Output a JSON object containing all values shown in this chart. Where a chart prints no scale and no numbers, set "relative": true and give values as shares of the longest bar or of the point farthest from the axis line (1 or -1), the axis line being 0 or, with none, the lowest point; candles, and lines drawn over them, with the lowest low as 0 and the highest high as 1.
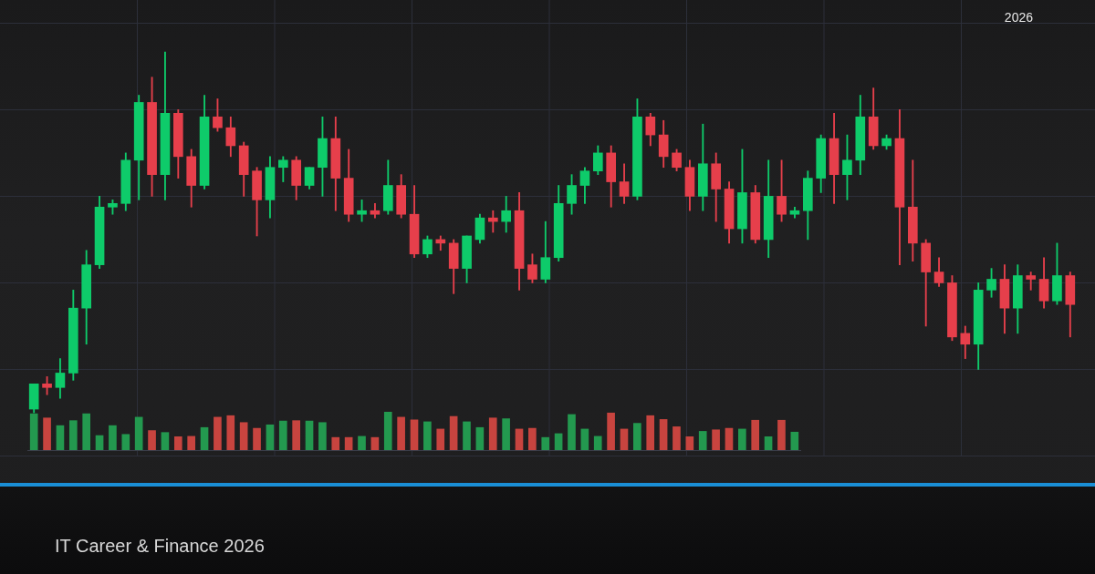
{
  "chart_data": [
    {
      "type": "candlestick",
      "title": "IT Career & Finance 2026",
      "annotations": [
        "2026"
      ],
      "relative": true,
      "grid": true,
      "categories": [
        null,
        null,
        null,
        null,
        null,
        null,
        null,
        null,
        null,
        null,
        null,
        null,
        null,
        null,
        null,
        null,
        null,
        null,
        null,
        null,
        null,
        null,
        null,
        null,
        null,
        null,
        null,
        null,
        null,
        null,
        null,
        null,
        null,
        null,
        null,
        null,
        null,
        null,
        null,
        null,
        null,
        null,
        null,
        null,
        null,
        null,
        null,
        null,
        null,
        null,
        null,
        null,
        null,
        null,
        null,
        null,
        null,
        null,
        null,
        null,
        null,
        null,
        null,
        null,
        null,
        null,
        null,
        null,
        null,
        null,
        null,
        null,
        null,
        null,
        null,
        null,
        null,
        null,
        null,
        null
      ],
      "ohlc": [
        [
          0.01,
          0.08,
          0,
          0.08
        ],
        [
          0.08,
          0.1,
          0.05,
          0.07
        ],
        [
          0.07,
          0.15,
          0.04,
          0.11
        ],
        [
          0.11,
          0.34,
          0.09,
          0.29
        ],
        [
          0.29,
          0.45,
          0.19,
          0.41
        ],
        [
          0.41,
          0.6,
          0.4,
          0.57
        ],
        [
          0.57,
          0.59,
          0.55,
          0.58
        ],
        [
          0.58,
          0.72,
          0.56,
          0.7
        ],
        [
          0.7,
          0.88,
          0.59,
          0.86
        ],
        [
          0.86,
          0.93,
          0.6,
          0.66
        ],
        [
          0.66,
          1,
          0.59,
          0.83
        ],
        [
          0.83,
          0.84,
          0.65,
          0.71
        ],
        [
          0.71,
          0.73,
          0.57,
          0.63
        ],
        [
          0.63,
          0.88,
          0.62,
          0.82
        ],
        [
          0.82,
          0.87,
          0.78,
          0.79
        ],
        [
          0.79,
          0.82,
          0.71,
          0.74
        ],
        [
          0.74,
          0.75,
          0.6,
          0.66
        ],
        [
          0.67,
          0.68,
          0.49,
          0.59
        ],
        [
          0.59,
          0.71,
          0.54,
          0.68
        ],
        [
          0.68,
          0.71,
          0.64,
          0.7
        ],
        [
          0.7,
          0.71,
          0.59,
          0.63
        ],
        [
          0.63,
          0.68,
          0.62,
          0.68
        ],
        [
          0.68,
          0.82,
          0.6,
          0.76
        ],
        [
          0.76,
          0.82,
          0.56,
          0.65
        ],
        [
          0.65,
          0.73,
          0.53,
          0.55
        ],
        [
          0.55,
          0.59,
          0.53,
          0.56
        ],
        [
          0.56,
          0.58,
          0.54,
          0.55
        ],
        [
          0.56,
          0.7,
          0.55,
          0.63
        ],
        [
          0.63,
          0.66,
          0.54,
          0.55
        ],
        [
          0.55,
          0.63,
          0.43,
          0.44
        ],
        [
          0.44,
          0.49,
          0.43,
          0.48
        ],
        [
          0.48,
          0.49,
          0.45,
          0.47
        ],
        [
          0.47,
          0.48,
          0.33,
          0.4
        ],
        [
          0.4,
          0.49,
          0.36,
          0.49
        ],
        [
          0.48,
          0.55,
          0.47,
          0.54
        ],
        [
          0.54,
          0.56,
          0.5,
          0.53
        ],
        [
          0.53,
          0.6,
          0.5,
          0.56
        ],
        [
          0.56,
          0.61,
          0.34,
          0.4
        ],
        [
          0.41,
          0.44,
          0.36,
          0.37
        ],
        [
          0.37,
          0.53,
          0.36,
          0.43
        ],
        [
          0.43,
          0.63,
          0.42,
          0.58
        ],
        [
          0.58,
          0.66,
          0.55,
          0.63
        ],
        [
          0.63,
          0.68,
          0.58,
          0.67
        ],
        [
          0.67,
          0.74,
          0.66,
          0.72
        ],
        [
          0.72,
          0.74,
          0.57,
          0.64
        ],
        [
          0.64,
          0.69,
          0.58,
          0.6
        ],
        [
          0.6,
          0.87,
          0.59,
          0.82
        ],
        [
          0.82,
          0.83,
          0.74,
          0.77
        ],
        [
          0.77,
          0.81,
          0.68,
          0.71
        ],
        [
          0.72,
          0.73,
          0.67,
          0.68
        ],
        [
          0.68,
          0.7,
          0.56,
          0.6
        ],
        [
          0.6,
          0.8,
          0.56,
          0.69
        ],
        [
          0.69,
          0.72,
          0.53,
          0.62
        ],
        [
          0.62,
          0.64,
          0.47,
          0.51
        ],
        [
          0.51,
          0.73,
          0.47,
          0.61
        ],
        [
          0.61,
          0.63,
          0.47,
          0.48
        ],
        [
          0.48,
          0.7,
          0.43,
          0.6
        ],
        [
          0.6,
          0.7,
          0.53,
          0.55
        ],
        [
          0.55,
          0.57,
          0.54,
          0.56
        ],
        [
          0.56,
          0.67,
          0.48,
          0.65
        ],
        [
          0.65,
          0.77,
          0.61,
          0.76
        ],
        [
          0.76,
          0.83,
          0.58,
          0.66
        ],
        [
          0.66,
          0.77,
          0.59,
          0.7
        ],
        [
          0.7,
          0.88,
          0.66,
          0.82
        ],
        [
          0.82,
          0.9,
          0.73,
          0.74
        ],
        [
          0.74,
          0.77,
          0.73,
          0.76
        ],
        [
          0.76,
          0.84,
          0.41,
          0.57
        ],
        [
          0.57,
          0.7,
          0.42,
          0.47
        ],
        [
          0.47,
          0.48,
          0.24,
          0.39
        ],
        [
          0.39,
          0.43,
          0.35,
          0.36
        ],
        [
          0.36,
          0.38,
          0.2,
          0.21
        ],
        [
          0.22,
          0.24,
          0.15,
          0.19
        ],
        [
          0.19,
          0.36,
          0.12,
          0.34
        ],
        [
          0.34,
          0.4,
          0.32,
          0.37
        ],
        [
          0.37,
          0.41,
          0.22,
          0.29
        ],
        [
          0.29,
          0.41,
          0.22,
          0.38
        ],
        [
          0.38,
          0.39,
          0.34,
          0.37
        ],
        [
          0.37,
          0.43,
          0.29,
          0.31
        ],
        [
          0.31,
          0.47,
          0.3,
          0.38
        ],
        [
          0.38,
          0.39,
          0.21,
          0.3
        ]
      ],
      "colors": [
        "#0ecb6a",
        "#e63f4b",
        "#0ecb6a",
        "#0ecb6a",
        "#0ecb6a",
        "#0ecb6a",
        "#0ecb6a",
        "#0ecb6a",
        "#0ecb6a",
        "#e63f4b",
        "#0ecb6a",
        "#e63f4b",
        "#e63f4b",
        "#0ecb6a",
        "#e63f4b",
        "#e63f4b",
        "#e63f4b",
        "#e63f4b",
        "#0ecb6a",
        "#0ecb6a",
        "#e63f4b",
        "#0ecb6a",
        "#0ecb6a",
        "#e63f4b",
        "#e63f4b",
        "#0ecb6a",
        "#e63f4b",
        "#0ecb6a",
        "#e63f4b",
        "#e63f4b",
        "#0ecb6a",
        "#e63f4b",
        "#e63f4b",
        "#0ecb6a",
        "#0ecb6a",
        "#e63f4b",
        "#0ecb6a",
        "#e63f4b",
        "#e63f4b",
        "#0ecb6a",
        "#0ecb6a",
        "#0ecb6a",
        "#0ecb6a",
        "#0ecb6a",
        "#e63f4b",
        "#e63f4b",
        "#0ecb6a",
        "#e63f4b",
        "#e63f4b",
        "#e63f4b",
        "#e63f4b",
        "#0ecb6a",
        "#e63f4b",
        "#e63f4b",
        "#0ecb6a",
        "#e63f4b",
        "#0ecb6a",
        "#e63f4b",
        "#0ecb6a",
        "#0ecb6a",
        "#0ecb6a",
        "#e63f4b",
        "#0ecb6a",
        "#0ecb6a",
        "#e63f4b",
        "#0ecb6a",
        "#e63f4b",
        "#e63f4b",
        "#e63f4b",
        "#e63f4b",
        "#e63f4b",
        "#e63f4b",
        "#0ecb6a",
        "#0ecb6a",
        "#e63f4b",
        "#0ecb6a",
        "#e63f4b",
        "#e63f4b",
        "#0ecb6a",
        "#e63f4b"
      ]
    },
    {
      "type": "bar",
      "relative": true,
      "categories": [
        null,
        null,
        null,
        null,
        null,
        null,
        null,
        null,
        null,
        null,
        null,
        null,
        null,
        null,
        null,
        null,
        null,
        null,
        null,
        null,
        null,
        null,
        null,
        null,
        null,
        null,
        null,
        null,
        null,
        null,
        null,
        null,
        null,
        null,
        null,
        null,
        null,
        null,
        null,
        null,
        null,
        null,
        null,
        null,
        null,
        null,
        null,
        null,
        null,
        null,
        null,
        null,
        null,
        null,
        null,
        null,
        null,
        null,
        null
      ],
      "values": [
        0.95,
        0.84,
        0.64,
        0.77,
        0.95,
        0.38,
        0.64,
        0.41,
        0.86,
        0.51,
        0.46,
        0.35,
        0.36,
        0.59,
        0.86,
        0.9,
        0.72,
        0.57,
        0.66,
        0.76,
        0.77,
        0.76,
        0.72,
        0.33,
        0.33,
        0.36,
        0.33,
        1,
        0.86,
        0.79,
        0.74,
        0.55,
        0.88,
        0.74,
        0.59,
        0.84,
        0.82,
        0.55,
        0.57,
        0.33,
        0.43,
        0.93,
        0.55,
        0.36,
        0.97,
        0.55,
        0.7,
        0.9,
        0.8,
        0.61,
        0.35,
        0.49,
        0.53,
        0.57,
        0.55,
        0.78,
        0.35,
        0.78,
        0.47
      ],
      "colors": [
        "#23994f",
        "#c8443f",
        "#23994f",
        "#23994f",
        "#23994f",
        "#23994f",
        "#23994f",
        "#23994f",
        "#23994f",
        "#c8443f",
        "#23994f",
        "#c8443f",
        "#c8443f",
        "#23994f",
        "#c8443f",
        "#c8443f",
        "#c8443f",
        "#c8443f",
        "#23994f",
        "#23994f",
        "#c8443f",
        "#23994f",
        "#23994f",
        "#c8443f",
        "#c8443f",
        "#23994f",
        "#c8443f",
        "#23994f",
        "#c8443f",
        "#c8443f",
        "#23994f",
        "#c8443f",
        "#c8443f",
        "#23994f",
        "#23994f",
        "#c8443f",
        "#23994f",
        "#c8443f",
        "#c8443f",
        "#23994f",
        "#23994f",
        "#23994f",
        "#23994f",
        "#23994f",
        "#c8443f",
        "#c8443f",
        "#23994f",
        "#c8443f",
        "#c8443f",
        "#c8443f",
        "#c8443f",
        "#23994f",
        "#c8443f",
        "#c8443f",
        "#23994f",
        "#c8443f",
        "#23994f",
        "#c8443f",
        "#23994f"
      ]
    }
  ]
}
